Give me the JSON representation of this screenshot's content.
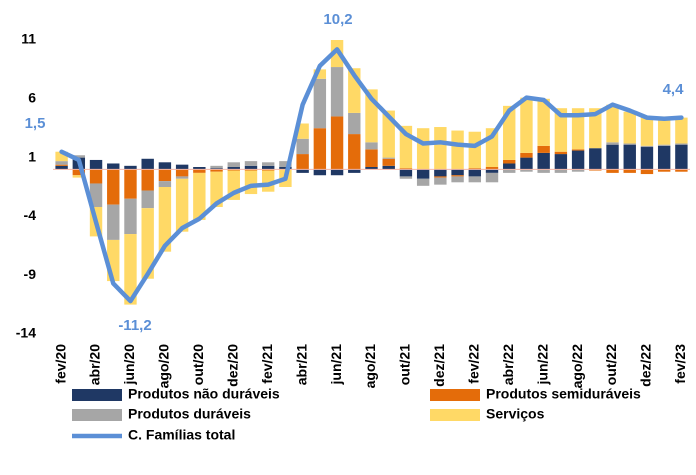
{
  "chart_data": {
    "type": "stacked-bar-line",
    "categories": [
      "fev/20",
      null,
      "abr/20",
      null,
      "jun/20",
      null,
      "ago/20",
      null,
      "out/20",
      null,
      "dez/20",
      null,
      "fev/21",
      null,
      "abr/21",
      null,
      "jun/21",
      null,
      "ago/21",
      null,
      "out/21",
      null,
      "dez/21",
      null,
      "fev/22",
      null,
      "abr/22",
      null,
      "jun/22",
      null,
      "ago/22",
      null,
      "out/22",
      null,
      "dez/22",
      null,
      "fev/23"
    ],
    "series": [
      {
        "name": "Produtos não duráveis",
        "color": "#1f3864",
        "values": [
          0.3,
          1.0,
          0.8,
          0.5,
          0.3,
          0.9,
          0.6,
          0.4,
          0.2,
          0.1,
          0.2,
          0.3,
          0.3,
          0.2,
          -0.3,
          -0.5,
          -0.5,
          -0.3,
          0.2,
          0.3,
          -0.6,
          -0.8,
          -0.6,
          -0.5,
          -0.6,
          -0.3,
          0.5,
          1.0,
          1.4,
          1.3,
          1.6,
          1.8,
          2.1,
          2.1,
          1.9,
          2.0,
          2.1
        ]
      },
      {
        "name": "Produtos semiduráveis",
        "color": "#e46c0a",
        "values": [
          0.1,
          -0.5,
          -1.2,
          -3.0,
          -2.5,
          -1.8,
          -1.0,
          -0.6,
          -0.3,
          -0.2,
          -0.1,
          -0.1,
          -0.1,
          0,
          1.3,
          3.5,
          4.5,
          3.0,
          1.5,
          0.6,
          0.1,
          0,
          -0.1,
          -0.1,
          0.1,
          0.2,
          0.3,
          0.4,
          0.6,
          0.2,
          0.1,
          -0.1,
          -0.3,
          -0.3,
          -0.4,
          -0.2,
          -0.2
        ]
      },
      {
        "name": "Produtos duráveis",
        "color": "#a6a6a6",
        "values": [
          0.3,
          0.2,
          -2.0,
          -3.0,
          -3.0,
          -1.5,
          -0.5,
          -0.2,
          0,
          0.2,
          0.4,
          0.4,
          0.3,
          0.5,
          1.3,
          4.2,
          4.2,
          1.8,
          0.6,
          0.1,
          -0.2,
          -0.6,
          -0.6,
          -0.5,
          -0.5,
          -0.8,
          -0.3,
          -0.2,
          -0.3,
          -0.3,
          -0.2,
          0,
          0.2,
          0.1,
          0.1,
          0.1,
          0.1
        ]
      },
      {
        "name": "Serviços",
        "color": "#ffd966",
        "values": [
          0.8,
          -0.2,
          -2.5,
          -3.5,
          -6.0,
          -6.0,
          -5.5,
          -4.5,
          -4.0,
          -3.0,
          -2.5,
          -2.0,
          -1.8,
          -1.5,
          1.3,
          0.8,
          2.3,
          3.8,
          4.5,
          4.0,
          3.6,
          3.5,
          3.6,
          3.3,
          3.1,
          3.3,
          4.6,
          4.7,
          4.0,
          3.7,
          3.5,
          3.4,
          3.2,
          2.7,
          2.5,
          2.4,
          2.2
        ]
      },
      {
        "name": "C. Famílias total",
        "color": "#5b8fd6",
        "type": "line",
        "values": [
          1.5,
          0.8,
          -4.5,
          -9.7,
          -11.2,
          -8.9,
          -6.5,
          -5.0,
          -4.2,
          -2.9,
          -2.0,
          -1.4,
          -1.3,
          -0.8,
          5.5,
          8.8,
          10.2,
          8.0,
          6.0,
          4.5,
          3.0,
          2.2,
          2.3,
          2.1,
          2.0,
          2.8,
          5.0,
          6.1,
          5.9,
          4.6,
          4.6,
          4.7,
          5.5,
          5.0,
          4.4,
          4.3,
          4.4
        ]
      }
    ],
    "annotations": [
      "1,5",
      "10,2",
      "-11,2",
      "4,4"
    ],
    "ylim": [
      -14,
      11
    ],
    "yticks": [
      11,
      6,
      1,
      -4,
      -9,
      -14
    ]
  }
}
